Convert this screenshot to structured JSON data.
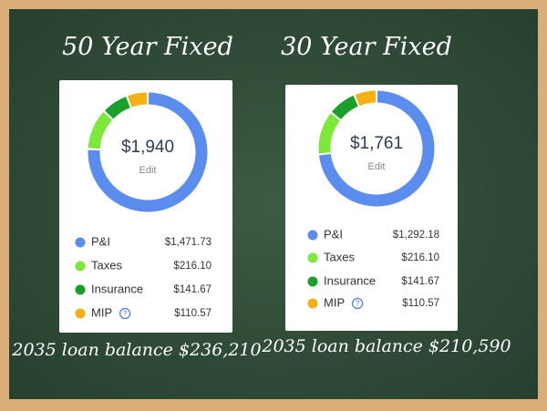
{
  "chart_data": [
    {
      "type": "pie",
      "title": "50 Year Fixed",
      "center_text": "$1,940",
      "center_subtext": "Edit",
      "categories": [
        "P&I",
        "Taxes",
        "Insurance",
        "MIP"
      ],
      "values": [
        1471.73,
        216.1,
        141.67,
        110.57
      ],
      "value_labels": [
        "$1,471.73",
        "$216.10",
        "$141.67",
        "$110.57"
      ],
      "colors": [
        "#5b8def",
        "#7ee83a",
        "#1aa02a",
        "#f5b014"
      ],
      "info_icon": "?",
      "footer": "2035 loan balance $236,210"
    },
    {
      "type": "pie",
      "title": "30 Year Fixed",
      "center_text": "$1,761",
      "center_subtext": "Edit",
      "categories": [
        "P&I",
        "Taxes",
        "Insurance",
        "MIP"
      ],
      "values": [
        1292.18,
        216.1,
        141.67,
        110.57
      ],
      "value_labels": [
        "$1,292.18",
        "$216.10",
        "$141.67",
        "$110.57"
      ],
      "colors": [
        "#5b8def",
        "#7ee83a",
        "#1aa02a",
        "#f5b014"
      ],
      "info_icon": "?",
      "footer": "2035 loan balance $210,590"
    }
  ]
}
